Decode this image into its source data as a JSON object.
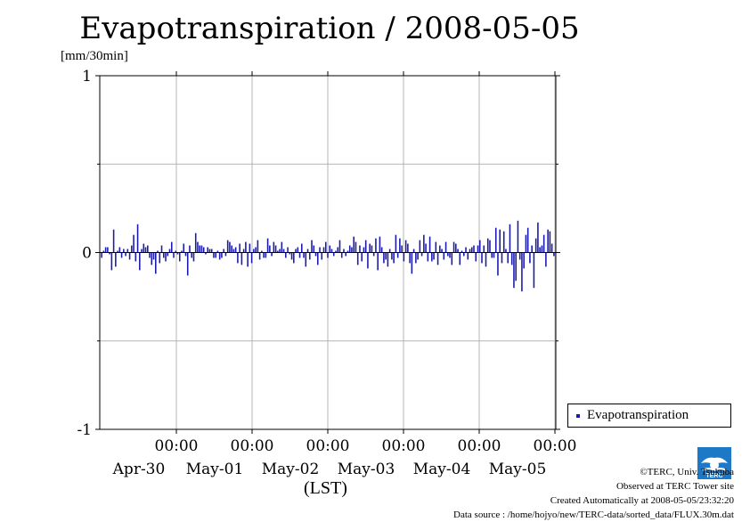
{
  "title": "Evapotranspiration / 2008-05-05",
  "unit_label": "[mm/30min]",
  "legend": {
    "label": "Evapotranspiration",
    "color": "#1a1aa8"
  },
  "xlabel": "(LST)",
  "credits": {
    "copyright": "©TERC, Univ. Tsukuba",
    "observed": "Observed at TERC Tower site",
    "created": "Created Automatically at 2008-05-05/23:32:20",
    "source": "Data source : /home/hojyo/new/TERC-data/sorted_data/FLUX.30m.dat"
  },
  "logo_text": "TERC",
  "chart_data": {
    "type": "bar",
    "title": "Evapotranspiration / 2008-05-05",
    "ylabel": "[mm/30min]",
    "xlabel": "(LST)",
    "ylim": [
      -1,
      1
    ],
    "yticks": [
      {
        "value": 1,
        "label": "1"
      },
      {
        "value": 0,
        "label": "0"
      },
      {
        "value": -1,
        "label": "-1"
      }
    ],
    "grid": true,
    "xticks": [
      {
        "time": "00:00",
        "date": "Apr-30"
      },
      {
        "time": "00:00",
        "date": "May-01"
      },
      {
        "time": "00:00",
        "date": "May-02"
      },
      {
        "time": "00:00",
        "date": "May-03"
      },
      {
        "time": "00:00",
        "date": "May-04"
      },
      {
        "time": "00:00",
        "date": "May-05"
      }
    ],
    "series": [
      {
        "name": "Evapotranspiration",
        "interval": "30min",
        "values": [
          -0.03,
          0.01,
          0.03,
          0.03,
          -0.01,
          -0.1,
          0.13,
          -0.08,
          0.01,
          0.03,
          -0.03,
          0.02,
          -0.02,
          0.02,
          -0.04,
          0.04,
          0.1,
          -0.05,
          0.16,
          -0.1,
          0.02,
          0.05,
          0.03,
          0.04,
          -0.03,
          -0.07,
          -0.04,
          -0.12,
          0.01,
          -0.06,
          0.04,
          -0.03,
          -0.05,
          -0.02,
          0.02,
          0.06,
          -0.03,
          0.01,
          -0.01,
          -0.05,
          0.01,
          0.05,
          -0.02,
          -0.13,
          0.04,
          -0.03,
          -0.05,
          0.11,
          0.06,
          0.04,
          0.04,
          0.03,
          -0.01,
          0.03,
          0.02,
          0.02,
          -0.03,
          -0.03,
          0.01,
          -0.04,
          -0.03,
          0.02,
          -0.02,
          0.07,
          0.06,
          0.04,
          0.02,
          0.03,
          -0.06,
          0.05,
          -0.07,
          0.02,
          0.06,
          -0.08,
          0.05,
          -0.06,
          0.02,
          0.03,
          0.07,
          -0.04,
          0.01,
          -0.03,
          -0.03,
          0.08,
          0.04,
          -0.02,
          0.06,
          0.04,
          0.01,
          0.02,
          0.06,
          0.02,
          -0.03,
          0.03,
          -0.01,
          -0.04,
          -0.06,
          0.02,
          0.03,
          -0.03,
          0.05,
          -0.03,
          -0.08,
          0.02,
          -0.04,
          0.07,
          0.04,
          -0.02,
          -0.07,
          0.03,
          -0.04,
          0.03,
          0.06,
          -0.03,
          0.04,
          0.02,
          -0.02,
          0.01,
          0.03,
          0.07,
          -0.03,
          0.02,
          -0.02,
          0.01,
          0.04,
          0.03,
          0.09,
          0.06,
          -0.07,
          0.04,
          -0.05,
          0.03,
          0.07,
          -0.09,
          0.05,
          0.04,
          -0.02,
          0.08,
          -0.1,
          0.09,
          0.03,
          -0.06,
          -0.04,
          -0.08,
          0.02,
          -0.04,
          -0.06,
          0.1,
          -0.03,
          0.08,
          0.04,
          -0.05,
          0.07,
          0.05,
          -0.06,
          -0.12,
          0.02,
          -0.06,
          -0.04,
          0.07,
          -0.02,
          0.1,
          0.05,
          -0.05,
          0.09,
          -0.05,
          -0.04,
          0.06,
          -0.07,
          0.04,
          0.02,
          -0.04,
          0.06,
          -0.02,
          -0.03,
          -0.07,
          0.06,
          0.05,
          0.02,
          -0.07,
          0.01,
          -0.02,
          0.03,
          -0.04,
          0.02,
          0.03,
          0.04,
          -0.05,
          0.04,
          0.07,
          -0.06,
          0.04,
          -0.08,
          0.08,
          0.07,
          -0.03,
          -0.03,
          0.14,
          -0.13,
          0.13,
          -0.06,
          0.12,
          0.02,
          -0.06,
          0.16,
          -0.07,
          -0.2,
          -0.16,
          0.18,
          -0.04,
          -0.22,
          -0.09,
          0.1,
          0.14,
          -0.06,
          0.04,
          -0.2,
          0.08,
          0.17,
          0.03,
          0.04,
          0.1,
          -0.08,
          0.13,
          0.12,
          0.05,
          -0.02
        ]
      }
    ]
  }
}
